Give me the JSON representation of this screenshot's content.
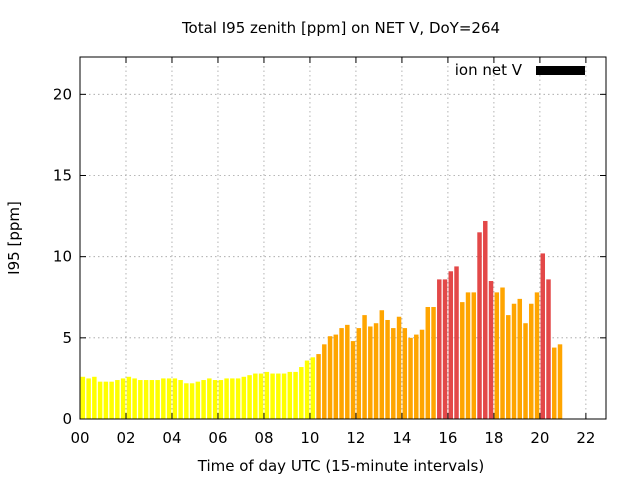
{
  "chart_data": {
    "type": "bar",
    "title": "Total I95 zenith [ppm] on NET V, DoY=264",
    "xlabel": "Time of day UTC (15-minute intervals)",
    "ylabel": "I95 [ppm]",
    "ylim": [
      0,
      22.3
    ],
    "xlim": [
      0,
      22.875
    ],
    "grid": true,
    "legend": {
      "label": "ion net V",
      "color": "#000000",
      "position": "top-right"
    },
    "x_ticks": [
      {
        "value": 0,
        "label": "00"
      },
      {
        "value": 2,
        "label": "02"
      },
      {
        "value": 4,
        "label": "04"
      },
      {
        "value": 6,
        "label": "06"
      },
      {
        "value": 8,
        "label": "08"
      },
      {
        "value": 10,
        "label": "10"
      },
      {
        "value": 12,
        "label": "12"
      },
      {
        "value": 14,
        "label": "14"
      },
      {
        "value": 16,
        "label": "16"
      },
      {
        "value": 18,
        "label": "18"
      },
      {
        "value": 20,
        "label": "20"
      },
      {
        "value": 22,
        "label": "22"
      }
    ],
    "y_ticks": [
      {
        "value": 0,
        "label": "0"
      },
      {
        "value": 5,
        "label": "5"
      },
      {
        "value": 10,
        "label": "10"
      },
      {
        "value": 15,
        "label": "15"
      },
      {
        "value": 20,
        "label": "20"
      }
    ],
    "interval_hours": 0.25,
    "color_scale": [
      {
        "max": 4.0,
        "color": "#ffff00"
      },
      {
        "max": 8.5,
        "color": "#ffa500"
      },
      {
        "max": 99,
        "color": "#e34848"
      }
    ],
    "values": [
      2.6,
      2.5,
      2.6,
      2.3,
      2.3,
      2.3,
      2.4,
      2.5,
      2.6,
      2.5,
      2.4,
      2.4,
      2.4,
      2.4,
      2.5,
      2.5,
      2.5,
      2.4,
      2.2,
      2.2,
      2.3,
      2.4,
      2.5,
      2.4,
      2.4,
      2.5,
      2.5,
      2.5,
      2.6,
      2.7,
      2.8,
      2.8,
      2.9,
      2.8,
      2.8,
      2.8,
      2.9,
      2.9,
      3.2,
      3.6,
      3.8,
      4.0,
      4.6,
      5.1,
      5.2,
      5.6,
      5.8,
      4.8,
      5.6,
      6.4,
      5.7,
      5.9,
      6.7,
      6.1,
      5.6,
      6.3,
      5.6,
      5.0,
      5.2,
      5.5,
      6.9,
      6.9,
      8.6,
      8.6,
      9.1,
      9.4,
      7.2,
      7.8,
      7.8,
      11.5,
      12.2,
      8.5,
      7.8,
      8.1,
      6.4,
      7.1,
      7.4,
      5.9,
      7.1,
      7.8,
      10.2,
      8.6,
      4.4,
      4.6
    ]
  }
}
